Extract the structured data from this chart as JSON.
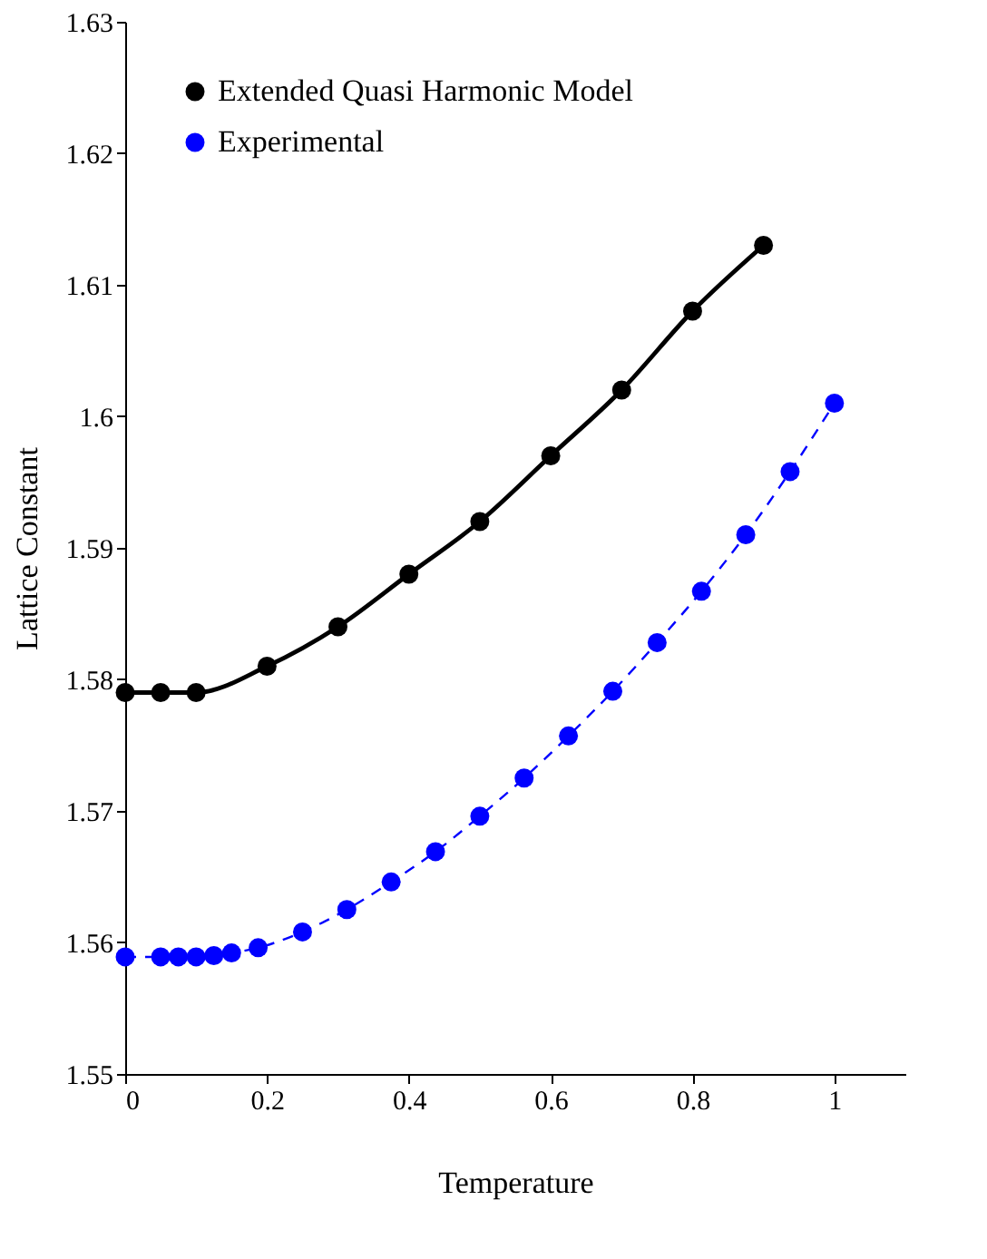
{
  "chart_data": {
    "type": "line",
    "xlabel": "Temperature",
    "ylabel": "Lattice  Constant",
    "xlim": [
      0,
      1.1
    ],
    "xticks": [
      0,
      0.2,
      0.4,
      0.6,
      0.8,
      1
    ],
    "ylim": [
      1.55,
      1.63
    ],
    "yticks": [
      1.55,
      1.56,
      1.57,
      1.58,
      1.59,
      1.6,
      1.61,
      1.62,
      1.63
    ],
    "grid": false,
    "legend": "top left",
    "series": [
      {
        "name": "Extended Quasi Harmonic Model",
        "type": "scatter",
        "marker": "circle",
        "color": "#000000",
        "x": [
          0,
          0.05,
          0.1,
          0.2,
          0.3,
          0.4,
          0.5,
          0.6,
          0.7,
          0.8,
          0.9
        ],
        "values": [
          1.579,
          1.579,
          1.579,
          1.581,
          1.584,
          1.588,
          1.592,
          1.597,
          1.602,
          1.608,
          1.613
        ]
      },
      {
        "marker": "none",
        "line_style": "solid",
        "color": "#000000",
        "x": [
          0,
          0.05,
          0.1,
          0.2,
          0.3,
          0.4,
          0.5,
          0.6,
          0.7,
          0.8,
          0.9
        ],
        "values": [
          1.579,
          1.579,
          1.579,
          1.581,
          1.584,
          1.588,
          1.592,
          1.597,
          1.602,
          1.608,
          1.613
        ]
      },
      {
        "name": "Experimental",
        "marker": "circle",
        "line_style": "dashed",
        "color": "#0000ff",
        "x": [
          0,
          0.05,
          0.075,
          0.1,
          0.125,
          0.15,
          0.1875,
          0.25,
          0.3125,
          0.375,
          0.4375,
          0.5,
          0.5625,
          0.625,
          0.6875,
          0.75,
          0.8125,
          0.875,
          0.9375,
          1.0
        ],
        "values": [
          1.5589,
          1.5589,
          1.5589,
          1.5589,
          1.559,
          1.5592,
          1.5596,
          1.5608,
          1.5625,
          1.5646,
          1.5669,
          1.5696,
          1.5725,
          1.5757,
          1.5791,
          1.5828,
          1.5867,
          1.591,
          1.5958,
          1.601
        ]
      }
    ]
  }
}
